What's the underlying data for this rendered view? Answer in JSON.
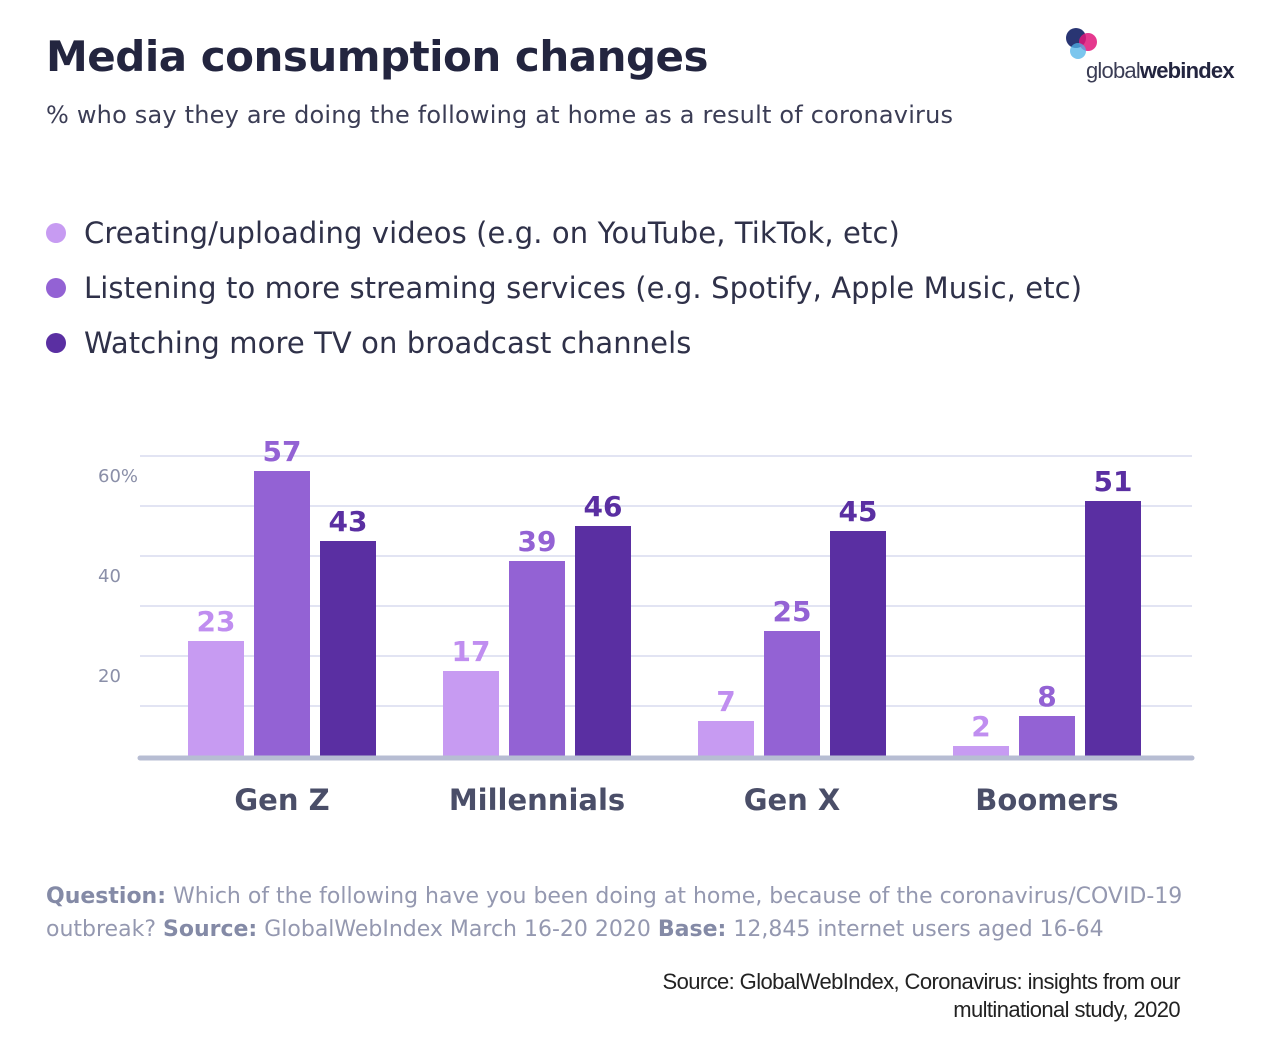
{
  "header": {
    "title": "Media consumption changes",
    "subtitle": "% who say they are doing the following at home as a result of coronavirus"
  },
  "logo": {
    "text_light": "global",
    "text_bold": "webindex",
    "colors": [
      "#1d2a6b",
      "#e0157a",
      "#4fb3e8"
    ]
  },
  "legend": [
    {
      "label": "Creating/uploading videos (e.g. on YouTube, TikTok, etc)",
      "color": "#c79bf2"
    },
    {
      "label": "Listening to more streaming services (e.g. Spotify, Apple Music, etc)",
      "color": "#9362d4"
    },
    {
      "label": "Watching more TV on broadcast channels",
      "color": "#5a2fa2"
    }
  ],
  "chart_data": {
    "type": "bar",
    "title": "Media consumption changes",
    "subtitle": "% who say they are doing the following at home as a result of coronavirus",
    "categories": [
      "Gen Z",
      "Millennials",
      "Gen X",
      "Boomers"
    ],
    "series": [
      {
        "name": "Creating/uploading videos (e.g. on YouTube, TikTok, etc)",
        "values": [
          23,
          17,
          7,
          2
        ],
        "color": "#c79bf2",
        "label_color": "#c08ef0"
      },
      {
        "name": "Listening to more streaming services (e.g. Spotify, Apple Music, etc)",
        "values": [
          57,
          39,
          25,
          8
        ],
        "color": "#9362d4",
        "label_color": "#9362d4"
      },
      {
        "name": "Watching more TV on broadcast channels",
        "values": [
          43,
          46,
          45,
          51
        ],
        "color": "#5a2fa2",
        "label_color": "#5a2fa2"
      }
    ],
    "y_ticks": [
      {
        "value": 20,
        "label": "20"
      },
      {
        "value": 40,
        "label": "40"
      },
      {
        "value": 60,
        "label": "60%"
      }
    ],
    "ylim": [
      0,
      60
    ],
    "grid": true,
    "legend_position": "top-left",
    "xlabel": "",
    "ylabel": ""
  },
  "footnote": {
    "question_label": "Question:",
    "question_text": "Which of the following have you been doing at home, because of the coronavirus/COVID-19 outbreak?",
    "source_label": "Source:",
    "source_text": "GlobalWebIndex March 16-20 2020",
    "base_label": "Base:",
    "base_text": "12,845 internet users aged 16-64"
  },
  "credit": {
    "line1": "Source: GlobalWebIndex, Coronavirus: insights from our",
    "line2": "multinational study, 2020"
  },
  "colors": {
    "grid": "#d9dcef",
    "baseline": "#b7bdd3",
    "category_label": "#4a4e68",
    "tick_label": "#8a8fa8"
  }
}
